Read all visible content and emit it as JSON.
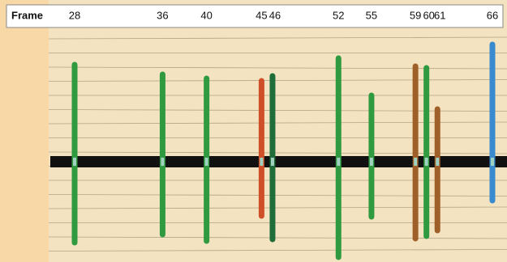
{
  "header": {
    "label": "Frame"
  },
  "frames": [
    {
      "frame": 28,
      "color": "#2f9a3f"
    },
    {
      "frame": 36,
      "color": "#2f9a3f"
    },
    {
      "frame": 40,
      "color": "#2f9a3f"
    },
    {
      "frame": 45,
      "color": "#cf4f28"
    },
    {
      "frame": 46,
      "color": "#1f6e3a"
    },
    {
      "frame": 52,
      "color": "#2f9a3f"
    },
    {
      "frame": 55,
      "color": "#2f9a3f"
    },
    {
      "frame": 59,
      "color": "#9e6028"
    },
    {
      "frame": 60,
      "color": "#2f9a3f"
    },
    {
      "frame": 61,
      "color": "#9e6028"
    },
    {
      "frame": 66,
      "color": "#3a8ad0"
    }
  ]
}
